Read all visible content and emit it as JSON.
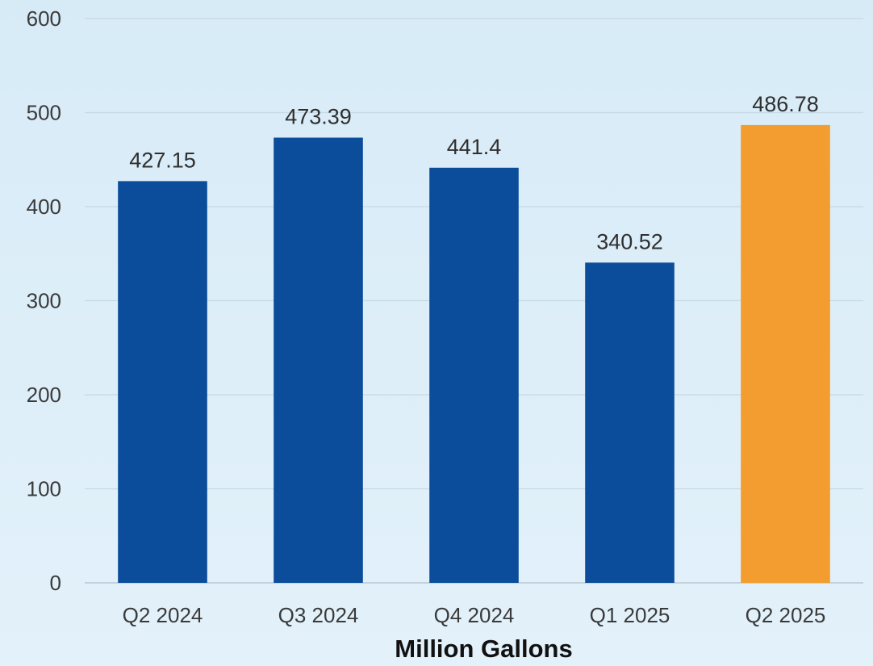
{
  "chart_data": {
    "type": "bar",
    "title": "",
    "xlabel": "Million Gallons",
    "ylabel": "",
    "categories": [
      "Q2 2024",
      "Q3 2024",
      "Q4 2024",
      "Q1 2025",
      "Q2 2025"
    ],
    "values": [
      427.15,
      473.39,
      441.4,
      340.52,
      486.78
    ],
    "data_labels": [
      "427.15",
      "473.39",
      "441.4",
      "340.52",
      "486.78"
    ],
    "bar_colors": [
      "#0b4d9a",
      "#0b4d9a",
      "#0b4d9a",
      "#0b4d9a",
      "#f39c2f"
    ],
    "ylim": [
      0,
      600
    ],
    "yticks": [
      0,
      100,
      200,
      300,
      400,
      500,
      600
    ],
    "ytick_labels": [
      "0",
      "100",
      "200",
      "300",
      "400",
      "500",
      "600"
    ],
    "grid": true,
    "legend": "none"
  }
}
